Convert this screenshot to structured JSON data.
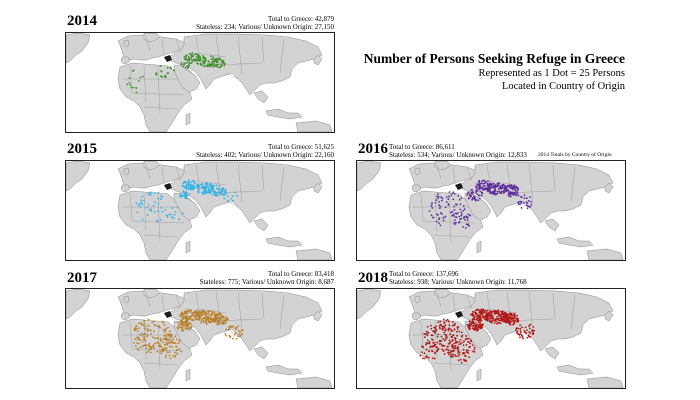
{
  "title": "Number of Persons Seeking Refuge in Greece",
  "subtitle_line1": "Represented as 1 Dot = 25 Persons",
  "subtitle_line2": "Located in Country of Origin",
  "note_2016": "2014 Totals by Country of Origin",
  "colors": {
    "land": "#d3d3d3",
    "border": "#8a8a8a",
    "sea": "#ffffff",
    "greece": "#1a1a1a"
  },
  "panels": [
    {
      "year": "2014",
      "total": "Total to Greece: 42,879",
      "detail": "Stateless: 234; Various/ Unknown Origin: 27,150",
      "dot_color": "#3d8f2a"
    },
    {
      "year": "2015",
      "total": "Total to Greece: 51,625",
      "detail": "Stateless: 402; Various/ Unknown Origin: 22,160",
      "dot_color": "#33b1e6"
    },
    {
      "year": "2016",
      "total": "Total to Greece: 86,611",
      "detail": "Stateless: 534; Various/ Unknown Origin: 12,833",
      "dot_color": "#5e2b9c"
    },
    {
      "year": "2017",
      "total": "Total to Greece: 83,418",
      "detail": "Stateless: 775; Various/ Unknown Origin: 8,687",
      "dot_color": "#b8802a"
    },
    {
      "year": "2018",
      "total": "Total to Greece: 137,696",
      "detail": "Stateless: 938; Various/ Unknown Origin: 11,768",
      "dot_color": "#b01818"
    }
  ]
}
